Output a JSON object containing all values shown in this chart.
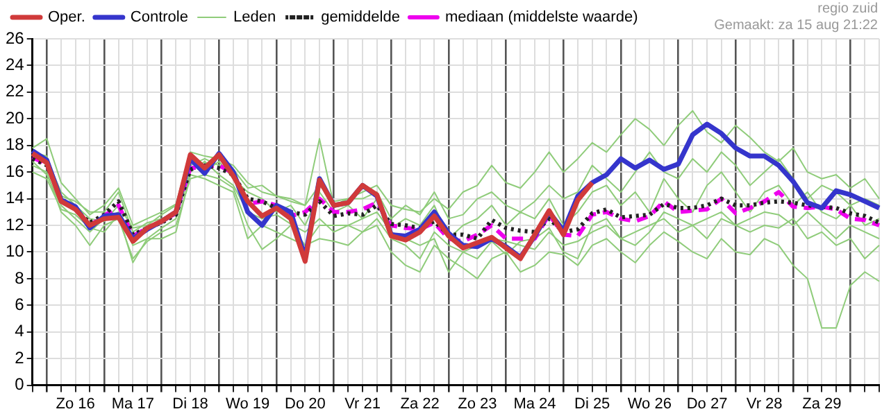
{
  "chart_data": {
    "type": "line",
    "annotations": [
      "regio zuid",
      "Gemaakt: za 15 aug 21:22"
    ],
    "categories": [
      null,
      null,
      null,
      "Zo 16",
      null,
      null,
      null,
      "Ma 17",
      null,
      null,
      null,
      "Di 18",
      null,
      null,
      null,
      "Wo 19",
      null,
      null,
      null,
      "Do 20",
      null,
      null,
      null,
      "Vr 21",
      null,
      null,
      null,
      "Za 22",
      null,
      null,
      null,
      "Zo 23",
      null,
      null,
      null,
      "Ma 24",
      null,
      null,
      null,
      "Di 25",
      null,
      null,
      null,
      "Wo 26",
      null,
      null,
      null,
      "Do 27",
      null,
      null,
      null,
      "Vr 28",
      null,
      null,
      null,
      "Za 29",
      null,
      null,
      null,
      null
    ],
    "ylim": [
      0,
      26
    ],
    "yticks": [
      0,
      2,
      4,
      6,
      8,
      10,
      12,
      14,
      16,
      18,
      20,
      22,
      24,
      26
    ],
    "grid": true,
    "legend": "top",
    "marker": "none",
    "series": [
      {
        "name": "Oper.",
        "color": "#d03a3a",
        "line_style": "solid",
        "values": [
          17.4,
          16.7,
          13.8,
          13.2,
          12.0,
          12.5,
          12.6,
          10.8,
          11.8,
          12.3,
          13.0,
          17.3,
          16.3,
          17.3,
          15.7,
          13.8,
          12.7,
          13.3,
          12.5,
          9.3,
          15.4,
          13.5,
          13.7,
          15.0,
          14.3,
          11.2,
          10.9,
          11.5,
          12.7,
          11.2,
          10.3,
          10.7,
          11.1,
          10.3,
          9.5,
          11.3,
          13.1,
          11.3,
          13.9,
          15.2,
          null,
          null,
          null,
          null,
          null,
          null,
          null,
          null,
          null,
          null,
          null,
          null,
          null,
          null,
          null,
          null,
          null,
          null,
          null,
          null
        ]
      },
      {
        "name": "Controle",
        "color": "#3535cc",
        "line_style": "solid",
        "values": [
          17.6,
          16.9,
          13.9,
          13.4,
          11.8,
          12.7,
          12.8,
          11.0,
          11.7,
          12.3,
          13.0,
          17.0,
          15.9,
          17.4,
          16.0,
          13.0,
          12.0,
          13.5,
          13.0,
          9.6,
          15.5,
          13.5,
          13.7,
          15.0,
          14.2,
          11.3,
          11.2,
          11.7,
          13.0,
          11.4,
          10.5,
          10.4,
          11.0,
          10.4,
          9.6,
          11.2,
          13.0,
          11.6,
          14.2,
          15.2,
          15.8,
          17.0,
          16.3,
          16.9,
          16.2,
          16.6,
          18.8,
          19.6,
          18.9,
          17.8,
          17.2,
          17.2,
          16.5,
          15.3,
          13.7,
          13.3,
          14.6,
          14.3,
          13.8,
          13.3
        ]
      },
      {
        "name": "Leden",
        "color": "#8fcc7a",
        "line_style": "solid",
        "values": [
          17.8,
          18.5,
          15.2,
          14.0,
          12.8,
          13.5,
          14.8,
          12.0,
          12.5,
          13.0,
          13.6,
          17.5,
          17.2,
          17.0,
          16.5,
          15.2,
          14.5,
          14.2,
          13.8,
          13.5,
          15.0,
          13.8,
          14.0,
          14.5,
          15.0,
          13.5,
          13.2,
          13.0,
          14.0,
          13.2,
          14.5,
          15.0,
          16.5,
          15.2,
          14.8,
          16.0,
          17.5,
          16.0,
          17.0,
          18.2,
          17.5,
          18.8,
          20.0,
          19.2,
          18.0,
          19.5,
          20.6,
          19.0,
          18.2,
          19.5,
          18.6,
          17.5,
          16.8,
          17.8,
          16.0,
          15.5,
          15.8,
          14.8,
          15.5,
          14.0
        ]
      },
      {
        "name": "gemiddelde",
        "color": "#222222",
        "line_style": "dotted",
        "values": [
          17.0,
          16.5,
          14.0,
          13.2,
          12.2,
          12.8,
          13.8,
          11.3,
          11.8,
          12.2,
          12.8,
          16.2,
          16.5,
          16.3,
          15.8,
          14.0,
          13.8,
          13.3,
          13.0,
          12.8,
          13.8,
          12.7,
          12.9,
          12.8,
          13.5,
          12.1,
          12.0,
          11.8,
          12.3,
          11.3,
          11.3,
          11.0,
          12.4,
          11.8,
          11.6,
          11.5,
          12.5,
          11.5,
          11.7,
          12.9,
          13.2,
          12.6,
          12.7,
          12.8,
          13.6,
          13.3,
          13.3,
          13.5,
          14.0,
          13.5,
          13.5,
          13.7,
          13.8,
          13.7,
          13.5,
          13.4,
          13.3,
          12.9,
          12.7,
          12.2
        ]
      },
      {
        "name": "mediaan (middelste waarde)",
        "color": "#ee00ee",
        "line_style": "dashed",
        "values": [
          17.1,
          16.6,
          13.9,
          13.2,
          12.0,
          12.7,
          13.5,
          11.2,
          11.8,
          12.3,
          12.9,
          16.3,
          16.4,
          16.5,
          15.9,
          13.6,
          13.8,
          13.5,
          12.7,
          13.0,
          14.0,
          13.0,
          13.0,
          13.2,
          13.7,
          12.0,
          11.8,
          11.7,
          12.2,
          11.0,
          10.8,
          11.3,
          12.0,
          11.0,
          11.0,
          11.0,
          12.8,
          11.3,
          11.2,
          12.8,
          13.0,
          12.5,
          12.3,
          12.7,
          13.8,
          13.0,
          13.1,
          13.2,
          14.0,
          12.9,
          13.3,
          13.8,
          14.5,
          13.4,
          13.3,
          13.4,
          13.2,
          12.5,
          12.4,
          12.0
        ]
      },
      {
        "color": "#8fcc7a",
        "line_style": "solid",
        "values": [
          16.5,
          16.0,
          13.0,
          12.0,
          10.5,
          12.0,
          12.5,
          9.5,
          10.8,
          11.5,
          12.0,
          15.5,
          15.8,
          15.5,
          14.8,
          12.0,
          10.2,
          11.0,
          12.0,
          10.5,
          11.0,
          10.8,
          10.5,
          11.5,
          12.0,
          10.0,
          9.0,
          8.5,
          10.5,
          9.5,
          8.8,
          8.0,
          9.5,
          10.0,
          8.5,
          9.0,
          10.0,
          9.8,
          9.0,
          10.5,
          11.0,
          10.0,
          9.2,
          10.5,
          11.5,
          10.8,
          10.0,
          9.5,
          11.0,
          10.0,
          9.8,
          11.0,
          10.5,
          9.0,
          8.0,
          4.3,
          4.3,
          7.5,
          8.5,
          7.8
        ]
      },
      {
        "color": "#8fcc7a",
        "line_style": "solid",
        "values": [
          17.2,
          17.0,
          14.5,
          13.5,
          12.5,
          12.3,
          13.5,
          11.8,
          12.0,
          12.8,
          13.5,
          16.8,
          16.0,
          16.8,
          15.5,
          14.5,
          14.0,
          13.0,
          13.5,
          12.0,
          14.5,
          13.0,
          13.5,
          12.5,
          14.0,
          11.8,
          12.5,
          12.0,
          13.5,
          11.0,
          12.0,
          12.5,
          13.5,
          12.0,
          13.0,
          12.5,
          14.0,
          12.0,
          13.0,
          14.5,
          15.0,
          13.5,
          14.5,
          13.0,
          15.5,
          14.0,
          13.0,
          15.0,
          16.0,
          14.5,
          13.0,
          14.5,
          15.0,
          13.5,
          14.5,
          13.0,
          12.5,
          13.5,
          12.0,
          12.5
        ]
      },
      {
        "color": "#8fcc7a",
        "line_style": "solid",
        "values": [
          16.8,
          15.8,
          13.5,
          12.5,
          11.5,
          12.5,
          13.0,
          10.5,
          11.0,
          11.8,
          12.5,
          16.0,
          16.8,
          15.8,
          15.0,
          13.0,
          12.5,
          12.8,
          12.1,
          11.5,
          12.5,
          11.5,
          12.0,
          11.5,
          12.5,
          11.0,
          10.5,
          9.5,
          11.5,
          10.5,
          10.0,
          10.5,
          11.0,
          10.8,
          10.5,
          10.2,
          11.5,
          10.5,
          10.8,
          11.5,
          12.0,
          11.0,
          11.5,
          12.0,
          12.5,
          11.5,
          12.0,
          11.0,
          12.5,
          12.0,
          11.5,
          12.0,
          11.8,
          12.5,
          11.0,
          11.5,
          10.5,
          11.0,
          9.5,
          10.5
        ]
      },
      {
        "color": "#8fcc7a",
        "line_style": "solid",
        "values": [
          17.5,
          17.2,
          14.2,
          13.8,
          13.0,
          13.0,
          14.5,
          11.5,
          12.2,
          12.5,
          13.0,
          16.5,
          17.0,
          16.5,
          16.2,
          14.8,
          15.0,
          14.2,
          14.0,
          13.5,
          18.5,
          13.5,
          14.0,
          14.0,
          14.5,
          12.5,
          13.5,
          12.8,
          14.5,
          12.5,
          12.8,
          14.0,
          14.5,
          13.5,
          13.0,
          13.8,
          15.0,
          14.0,
          14.5,
          16.5,
          15.5,
          14.5,
          16.0,
          17.5,
          16.0,
          15.5,
          17.0,
          16.0,
          17.5,
          16.5,
          15.0,
          16.0,
          17.0,
          15.5,
          14.0,
          15.0,
          14.5,
          13.5,
          14.0,
          13.5
        ]
      },
      {
        "color": "#8fcc7a",
        "line_style": "solid",
        "values": [
          16.0,
          15.5,
          13.2,
          12.8,
          11.8,
          11.5,
          12.8,
          9.2,
          11.0,
          11.0,
          11.5,
          15.8,
          15.5,
          15.0,
          14.5,
          11.0,
          12.0,
          11.5,
          11.0,
          10.5,
          12.0,
          12.0,
          12.0,
          12.5,
          13.0,
          11.5,
          11.0,
          10.5,
          11.0,
          8.5,
          10.0,
          9.5,
          10.8,
          9.8,
          10.8,
          11.0,
          11.8,
          10.0,
          9.5,
          12.0,
          12.5,
          11.0,
          10.5,
          11.5,
          13.0,
          12.5,
          12.0,
          12.5,
          13.0,
          12.0,
          12.5,
          13.0,
          12.8,
          12.0,
          13.0,
          12.0,
          11.0,
          12.0,
          11.5,
          11.0
        ]
      }
    ]
  }
}
